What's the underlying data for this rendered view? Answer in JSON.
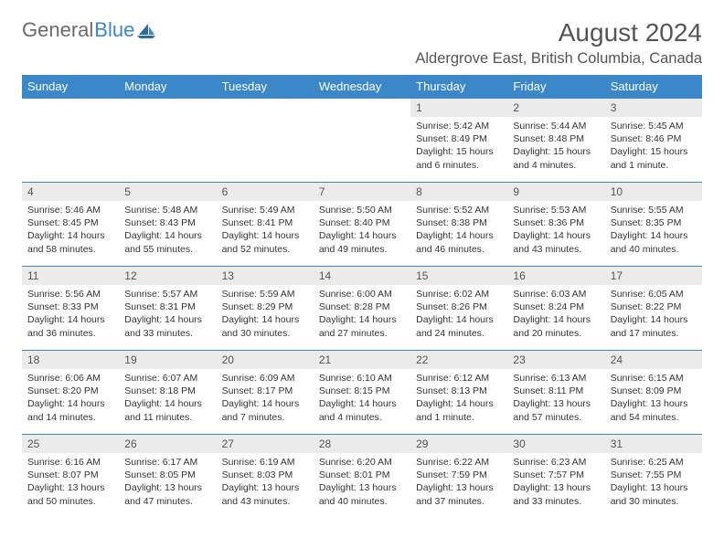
{
  "logo": {
    "text_gray": "General",
    "text_blue": "Blue"
  },
  "title": "August 2024",
  "location": "Aldergrove East, British Columbia, Canada",
  "colors": {
    "header_bg": "#3b87c8",
    "header_text": "#ffffff",
    "daynum_bg": "#ebebeb",
    "body_text": "#333333",
    "title_text": "#555555",
    "row_border": "#3b87c8"
  },
  "days_of_week": [
    "Sunday",
    "Monday",
    "Tuesday",
    "Wednesday",
    "Thursday",
    "Friday",
    "Saturday"
  ],
  "weeks": [
    [
      {
        "n": "",
        "empty": true
      },
      {
        "n": "",
        "empty": true
      },
      {
        "n": "",
        "empty": true
      },
      {
        "n": "",
        "empty": true
      },
      {
        "n": "1",
        "sunrise": "Sunrise: 5:42 AM",
        "sunset": "Sunset: 8:49 PM",
        "daylight": "Daylight: 15 hours and 6 minutes."
      },
      {
        "n": "2",
        "sunrise": "Sunrise: 5:44 AM",
        "sunset": "Sunset: 8:48 PM",
        "daylight": "Daylight: 15 hours and 4 minutes."
      },
      {
        "n": "3",
        "sunrise": "Sunrise: 5:45 AM",
        "sunset": "Sunset: 8:46 PM",
        "daylight": "Daylight: 15 hours and 1 minute."
      }
    ],
    [
      {
        "n": "4",
        "sunrise": "Sunrise: 5:46 AM",
        "sunset": "Sunset: 8:45 PM",
        "daylight": "Daylight: 14 hours and 58 minutes."
      },
      {
        "n": "5",
        "sunrise": "Sunrise: 5:48 AM",
        "sunset": "Sunset: 8:43 PM",
        "daylight": "Daylight: 14 hours and 55 minutes."
      },
      {
        "n": "6",
        "sunrise": "Sunrise: 5:49 AM",
        "sunset": "Sunset: 8:41 PM",
        "daylight": "Daylight: 14 hours and 52 minutes."
      },
      {
        "n": "7",
        "sunrise": "Sunrise: 5:50 AM",
        "sunset": "Sunset: 8:40 PM",
        "daylight": "Daylight: 14 hours and 49 minutes."
      },
      {
        "n": "8",
        "sunrise": "Sunrise: 5:52 AM",
        "sunset": "Sunset: 8:38 PM",
        "daylight": "Daylight: 14 hours and 46 minutes."
      },
      {
        "n": "9",
        "sunrise": "Sunrise: 5:53 AM",
        "sunset": "Sunset: 8:36 PM",
        "daylight": "Daylight: 14 hours and 43 minutes."
      },
      {
        "n": "10",
        "sunrise": "Sunrise: 5:55 AM",
        "sunset": "Sunset: 8:35 PM",
        "daylight": "Daylight: 14 hours and 40 minutes."
      }
    ],
    [
      {
        "n": "11",
        "sunrise": "Sunrise: 5:56 AM",
        "sunset": "Sunset: 8:33 PM",
        "daylight": "Daylight: 14 hours and 36 minutes."
      },
      {
        "n": "12",
        "sunrise": "Sunrise: 5:57 AM",
        "sunset": "Sunset: 8:31 PM",
        "daylight": "Daylight: 14 hours and 33 minutes."
      },
      {
        "n": "13",
        "sunrise": "Sunrise: 5:59 AM",
        "sunset": "Sunset: 8:29 PM",
        "daylight": "Daylight: 14 hours and 30 minutes."
      },
      {
        "n": "14",
        "sunrise": "Sunrise: 6:00 AM",
        "sunset": "Sunset: 8:28 PM",
        "daylight": "Daylight: 14 hours and 27 minutes."
      },
      {
        "n": "15",
        "sunrise": "Sunrise: 6:02 AM",
        "sunset": "Sunset: 8:26 PM",
        "daylight": "Daylight: 14 hours and 24 minutes."
      },
      {
        "n": "16",
        "sunrise": "Sunrise: 6:03 AM",
        "sunset": "Sunset: 8:24 PM",
        "daylight": "Daylight: 14 hours and 20 minutes."
      },
      {
        "n": "17",
        "sunrise": "Sunrise: 6:05 AM",
        "sunset": "Sunset: 8:22 PM",
        "daylight": "Daylight: 14 hours and 17 minutes."
      }
    ],
    [
      {
        "n": "18",
        "sunrise": "Sunrise: 6:06 AM",
        "sunset": "Sunset: 8:20 PM",
        "daylight": "Daylight: 14 hours and 14 minutes."
      },
      {
        "n": "19",
        "sunrise": "Sunrise: 6:07 AM",
        "sunset": "Sunset: 8:18 PM",
        "daylight": "Daylight: 14 hours and 11 minutes."
      },
      {
        "n": "20",
        "sunrise": "Sunrise: 6:09 AM",
        "sunset": "Sunset: 8:17 PM",
        "daylight": "Daylight: 14 hours and 7 minutes."
      },
      {
        "n": "21",
        "sunrise": "Sunrise: 6:10 AM",
        "sunset": "Sunset: 8:15 PM",
        "daylight": "Daylight: 14 hours and 4 minutes."
      },
      {
        "n": "22",
        "sunrise": "Sunrise: 6:12 AM",
        "sunset": "Sunset: 8:13 PM",
        "daylight": "Daylight: 14 hours and 1 minute."
      },
      {
        "n": "23",
        "sunrise": "Sunrise: 6:13 AM",
        "sunset": "Sunset: 8:11 PM",
        "daylight": "Daylight: 13 hours and 57 minutes."
      },
      {
        "n": "24",
        "sunrise": "Sunrise: 6:15 AM",
        "sunset": "Sunset: 8:09 PM",
        "daylight": "Daylight: 13 hours and 54 minutes."
      }
    ],
    [
      {
        "n": "25",
        "sunrise": "Sunrise: 6:16 AM",
        "sunset": "Sunset: 8:07 PM",
        "daylight": "Daylight: 13 hours and 50 minutes."
      },
      {
        "n": "26",
        "sunrise": "Sunrise: 6:17 AM",
        "sunset": "Sunset: 8:05 PM",
        "daylight": "Daylight: 13 hours and 47 minutes."
      },
      {
        "n": "27",
        "sunrise": "Sunrise: 6:19 AM",
        "sunset": "Sunset: 8:03 PM",
        "daylight": "Daylight: 13 hours and 43 minutes."
      },
      {
        "n": "28",
        "sunrise": "Sunrise: 6:20 AM",
        "sunset": "Sunset: 8:01 PM",
        "daylight": "Daylight: 13 hours and 40 minutes."
      },
      {
        "n": "29",
        "sunrise": "Sunrise: 6:22 AM",
        "sunset": "Sunset: 7:59 PM",
        "daylight": "Daylight: 13 hours and 37 minutes."
      },
      {
        "n": "30",
        "sunrise": "Sunrise: 6:23 AM",
        "sunset": "Sunset: 7:57 PM",
        "daylight": "Daylight: 13 hours and 33 minutes."
      },
      {
        "n": "31",
        "sunrise": "Sunrise: 6:25 AM",
        "sunset": "Sunset: 7:55 PM",
        "daylight": "Daylight: 13 hours and 30 minutes."
      }
    ]
  ]
}
